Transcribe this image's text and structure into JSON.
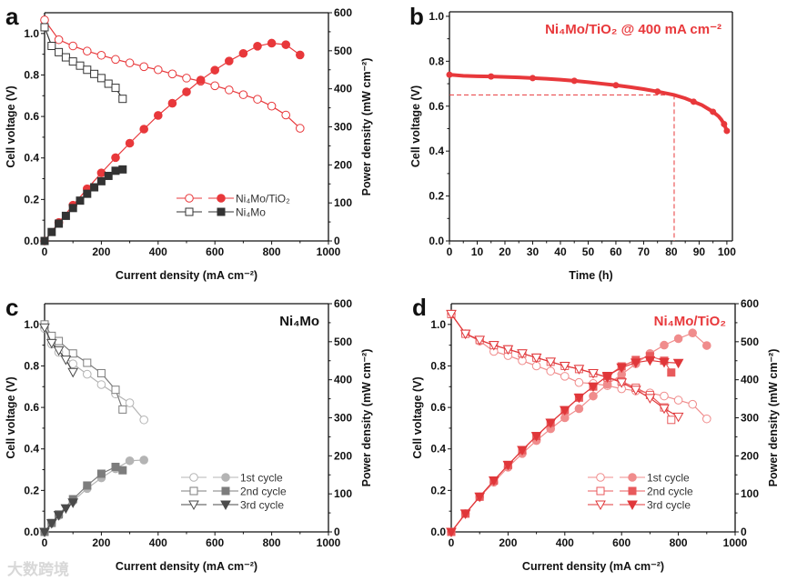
{
  "watermark": "大数跨境",
  "chart_data": [
    {
      "panel": "a",
      "type": "line",
      "xlabel": "Current density (mA cm⁻²)",
      "ylabel": "Cell voltage (V)",
      "y2label": "Power density (mW cm⁻²)",
      "xlim": [
        0,
        1000
      ],
      "ylim": [
        0,
        1.1
      ],
      "y2lim": [
        0,
        600
      ],
      "xticks": [
        0,
        200,
        400,
        600,
        800,
        1000
      ],
      "yticks": [
        0.0,
        0.2,
        0.4,
        0.6,
        0.8,
        1.0
      ],
      "y2ticks": [
        0,
        100,
        200,
        300,
        400,
        500,
        600
      ],
      "legend_position": "bottom-right",
      "series": [
        {
          "name": "Ni₄Mo/TiO₂",
          "color": "#e8383b",
          "x": [
            0,
            50,
            100,
            150,
            200,
            250,
            300,
            350,
            400,
            450,
            500,
            550,
            600,
            650,
            700,
            750,
            800,
            850,
            900
          ],
          "voltage": [
            1.065,
            0.97,
            0.94,
            0.915,
            0.895,
            0.875,
            0.858,
            0.84,
            0.825,
            0.805,
            0.785,
            0.77,
            0.748,
            0.728,
            0.705,
            0.683,
            0.65,
            0.607,
            0.543
          ],
          "power": [
            0,
            48.5,
            94,
            137,
            179,
            219,
            257,
            294,
            330,
            362,
            392,
            423,
            449,
            473,
            493,
            512,
            520,
            516,
            489
          ],
          "marker": "circle"
        },
        {
          "name": "Ni₄Mo",
          "color": "#333333",
          "x": [
            0,
            25,
            50,
            75,
            100,
            125,
            150,
            175,
            200,
            225,
            250,
            275
          ],
          "voltage": [
            1.03,
            0.94,
            0.91,
            0.885,
            0.865,
            0.845,
            0.825,
            0.805,
            0.785,
            0.758,
            0.738,
            0.685
          ],
          "power": [
            0,
            23.5,
            45.5,
            66,
            86.5,
            106,
            124,
            141,
            157,
            171,
            184.5,
            188
          ],
          "marker": "square"
        }
      ]
    },
    {
      "panel": "b",
      "type": "line",
      "title": "Ni₄Mo/TiO₂ @ 400 mA cm⁻²",
      "xlabel": "Time (h)",
      "ylabel": "Cell voltage (V)",
      "xlim": [
        0,
        102
      ],
      "ylim": [
        0,
        1.02
      ],
      "xticks": [
        0,
        10,
        20,
        30,
        40,
        50,
        60,
        70,
        80,
        90,
        100
      ],
      "yticks": [
        0.0,
        0.2,
        0.4,
        0.6,
        0.8,
        1.0
      ],
      "series": [
        {
          "name": "Ni₄Mo/TiO₂",
          "color": "#e8383b",
          "x": [
            0,
            5,
            10,
            15,
            20,
            25,
            30,
            35,
            40,
            45,
            50,
            55,
            60,
            65,
            70,
            75,
            81,
            85,
            88,
            91,
            93,
            95,
            97,
            98,
            99,
            100
          ],
          "voltage": [
            0.74,
            0.735,
            0.733,
            0.732,
            0.73,
            0.728,
            0.725,
            0.722,
            0.718,
            0.713,
            0.707,
            0.7,
            0.693,
            0.685,
            0.676,
            0.665,
            0.65,
            0.635,
            0.62,
            0.605,
            0.59,
            0.575,
            0.555,
            0.54,
            0.52,
            0.49
          ]
        }
      ],
      "reference": {
        "time": 81,
        "voltage": 0.65
      }
    },
    {
      "panel": "c",
      "type": "line",
      "annotation": "Ni₄Mo",
      "xlabel": "Current density (mA cm⁻²)",
      "ylabel": "Cell voltage (V)",
      "y2label": "Power density (mW cm⁻²)",
      "xlim": [
        0,
        1000
      ],
      "ylim": [
        0,
        1.1
      ],
      "y2lim": [
        0,
        600
      ],
      "xticks": [
        0,
        200,
        400,
        600,
        800,
        1000
      ],
      "yticks": [
        0.0,
        0.2,
        0.4,
        0.6,
        0.8,
        1.0
      ],
      "y2ticks": [
        0,
        100,
        200,
        300,
        400,
        500,
        600
      ],
      "legend_position": "bottom-right",
      "series": [
        {
          "name": "1st cycle",
          "color": "#b4b4b4",
          "marker": "circle",
          "x": [
            0,
            25,
            50,
            100,
            150,
            200,
            250,
            300,
            350
          ],
          "voltage": [
            0.98,
            0.905,
            0.865,
            0.81,
            0.76,
            0.71,
            0.665,
            0.622,
            0.54
          ],
          "power": [
            0,
            22.6,
            43,
            81,
            114,
            142,
            166,
            187,
            189
          ]
        },
        {
          "name": "2nd cycle",
          "color": "#7d7d7d",
          "marker": "square",
          "x": [
            0,
            25,
            50,
            100,
            150,
            200,
            250,
            275
          ],
          "voltage": [
            1.0,
            0.945,
            0.92,
            0.86,
            0.815,
            0.765,
            0.685,
            0.59
          ],
          "power": [
            0,
            23.6,
            46,
            86,
            122,
            153,
            171,
            162
          ]
        },
        {
          "name": "3rd cycle",
          "color": "#4a4a4a",
          "marker": "triangle-down",
          "x": [
            0,
            25,
            50,
            75,
            100
          ],
          "voltage": [
            0.985,
            0.91,
            0.875,
            0.83,
            0.77
          ],
          "power": [
            0,
            22.8,
            43.8,
            62,
            77
          ]
        }
      ]
    },
    {
      "panel": "d",
      "type": "line",
      "annotation": "Ni₄Mo/TiO₂",
      "xlabel": "Current density (mA cm⁻²)",
      "ylabel": "Cell voltage (V)",
      "y2label": "Power density (mW cm⁻²)",
      "xlim": [
        0,
        1000
      ],
      "ylim": [
        0,
        1.1
      ],
      "y2lim": [
        0,
        600
      ],
      "xticks": [
        0,
        200,
        400,
        600,
        800,
        1000
      ],
      "yticks": [
        0.0,
        0.2,
        0.4,
        0.6,
        0.8,
        1.0
      ],
      "y2ticks": [
        0,
        100,
        200,
        300,
        400,
        500,
        600
      ],
      "legend_position": "bottom-right",
      "series": [
        {
          "name": "1st cycle",
          "color": "#f08c8c",
          "marker": "circle",
          "x": [
            0,
            50,
            100,
            150,
            200,
            250,
            300,
            350,
            400,
            450,
            500,
            550,
            600,
            650,
            700,
            750,
            800,
            850,
            900
          ],
          "voltage": [
            1.05,
            0.955,
            0.92,
            0.87,
            0.85,
            0.825,
            0.8,
            0.775,
            0.75,
            0.72,
            0.715,
            0.705,
            0.69,
            0.68,
            0.67,
            0.655,
            0.635,
            0.615,
            0.545
          ],
          "power": [
            0,
            48,
            92,
            130.5,
            170,
            206,
            240,
            271,
            300,
            324,
            357,
            388,
            414,
            442,
            469,
            491,
            508,
            523,
            490
          ]
        },
        {
          "name": "2nd cycle",
          "color": "#e85a5c",
          "marker": "square",
          "x": [
            0,
            50,
            100,
            150,
            200,
            250,
            300,
            350,
            400,
            450,
            500,
            550,
            600,
            650,
            700,
            750,
            775
          ],
          "voltage": [
            1.05,
            0.955,
            0.925,
            0.9,
            0.88,
            0.86,
            0.84,
            0.82,
            0.8,
            0.785,
            0.765,
            0.745,
            0.725,
            0.695,
            0.66,
            0.6,
            0.54
          ],
          "power": [
            0,
            48,
            92.5,
            135,
            176,
            215,
            252,
            287,
            320,
            353,
            382,
            410,
            435,
            452,
            462,
            450,
            419
          ]
        },
        {
          "name": "3rd cycle",
          "color": "#e0373a",
          "marker": "triangle-down",
          "x": [
            0,
            50,
            100,
            150,
            200,
            250,
            300,
            350,
            400,
            450,
            500,
            550,
            600,
            650,
            700,
            750,
            800
          ],
          "voltage": [
            1.05,
            0.955,
            0.925,
            0.9,
            0.88,
            0.86,
            0.84,
            0.82,
            0.8,
            0.785,
            0.765,
            0.745,
            0.72,
            0.685,
            0.645,
            0.595,
            0.555
          ],
          "power": [
            0,
            48,
            92.5,
            135,
            176,
            215,
            252,
            287,
            320,
            353,
            382,
            410,
            432,
            445,
            451,
            446,
            444
          ]
        }
      ]
    }
  ]
}
